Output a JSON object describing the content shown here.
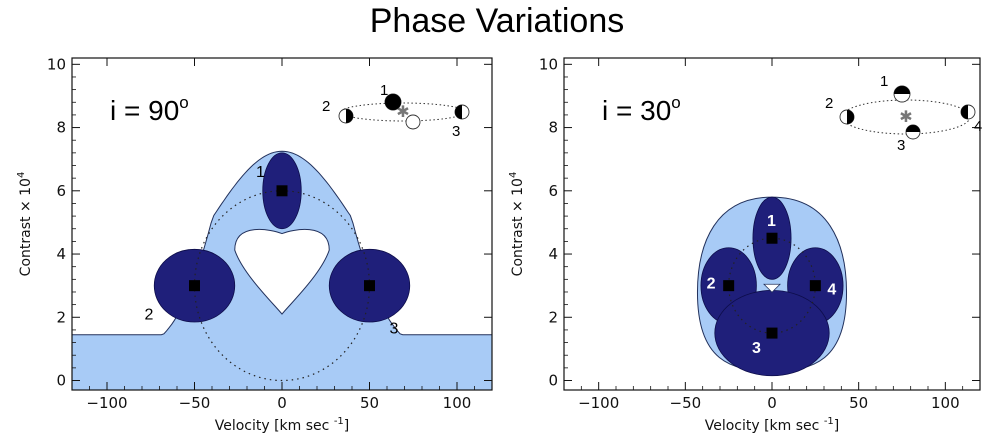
{
  "title": "Phase Variations",
  "colors": {
    "light_fill": "#a8cbf6",
    "dark_fill": "#1f1f7a",
    "point": "#000000",
    "outline": "#22315c"
  },
  "chart_data": [
    {
      "type": "scatter",
      "title": "",
      "annotation": "i = 90",
      "annotation_superscript": "o",
      "xlabel": "Velocity [km sec",
      "xlabel_superscript": "-1",
      "xlabel_close": "]",
      "ylabel": "Contrast × 10",
      "ylabel_superscript": "4",
      "xlim": [
        -120,
        120
      ],
      "ylim": [
        -0.3,
        10.2
      ],
      "xticks": [
        -100,
        -50,
        0,
        50,
        100
      ],
      "xtick_labels": [
        "−100",
        "−50",
        "0",
        "50",
        "100"
      ],
      "yticks": [
        0,
        2,
        4,
        6,
        8,
        10
      ],
      "ytick_labels": [
        "0",
        "2",
        "4",
        "6",
        "8",
        "10"
      ],
      "grid": false,
      "orbit_path": {
        "center_x": 0,
        "center_y": 3,
        "radius_x": 50,
        "radius_y": 3
      },
      "points": [
        {
          "label": "1",
          "x": 0,
          "y": 6,
          "blob_rx": 11,
          "blob_ry": 1.2
        },
        {
          "label": "2",
          "x": -50,
          "y": 3,
          "blob_rx": 23,
          "blob_ry": 1.15
        },
        {
          "label": "3",
          "x": 50,
          "y": 3,
          "blob_rx": 23,
          "blob_ry": 1.15
        }
      ],
      "envelope": {
        "baseline": 1.45,
        "base_x_left": -68,
        "base_x_right": 68,
        "peak": 7.25,
        "hole_center": [
          0,
          4.0
        ],
        "hole_half_width": 27,
        "hole_top": 4.9,
        "hole_bottom": 2.1
      },
      "orbit_legend_labels": [
        "1",
        "2",
        "3"
      ]
    },
    {
      "type": "scatter",
      "title": "",
      "annotation": "i = 30",
      "annotation_superscript": "o",
      "xlabel": "Velocity [km sec",
      "xlabel_superscript": "-1",
      "xlabel_close": "]",
      "ylabel": "Contrast × 10",
      "ylabel_superscript": "4",
      "xlim": [
        -120,
        120
      ],
      "ylim": [
        -0.3,
        10.2
      ],
      "xticks": [
        -100,
        -50,
        0,
        50,
        100
      ],
      "xtick_labels": [
        "−100",
        "−50",
        "0",
        "50",
        "100"
      ],
      "yticks": [
        0,
        2,
        4,
        6,
        8,
        10
      ],
      "ytick_labels": [
        "0",
        "2",
        "4",
        "6",
        "8",
        "10"
      ],
      "grid": false,
      "orbit_path": {
        "center_x": 0,
        "center_y": 3,
        "radius_x": 25,
        "radius_y": 1.5
      },
      "points": [
        {
          "label": "1",
          "x": 0,
          "y": 4.5,
          "blob_rx": 11,
          "blob_ry": 1.3
        },
        {
          "label": "2",
          "x": -25,
          "y": 3,
          "blob_rx": 16,
          "blob_ry": 1.2
        },
        {
          "label": "4",
          "x": 25,
          "y": 3,
          "blob_rx": 16,
          "blob_ry": 1.2
        },
        {
          "label": "3",
          "x": 0,
          "y": 1.5,
          "blob_rx": 33,
          "blob_ry": 1.35
        }
      ],
      "envelope": {
        "center": [
          0,
          3.1
        ],
        "half_width": 43,
        "top": 5.8,
        "bottom": 0.3
      },
      "orbit_legend_labels": [
        "1",
        "2",
        "3",
        "4"
      ]
    }
  ]
}
